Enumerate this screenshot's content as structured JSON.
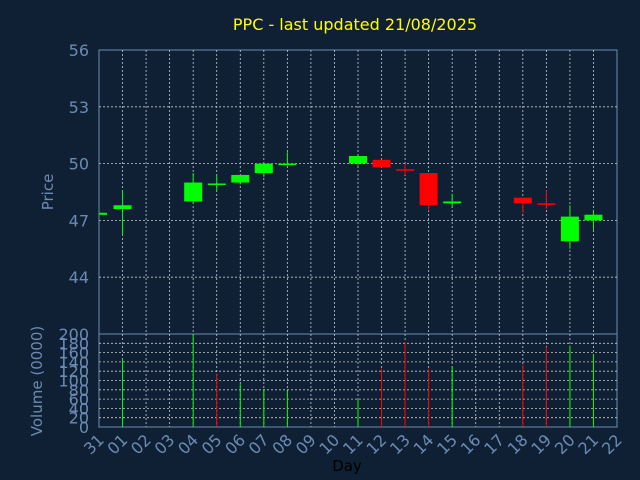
{
  "chart_data": [
    {
      "type": "candlestick",
      "title": "PPC - last updated 21/08/2025",
      "ylabel": "Price",
      "ylim": [
        41,
        56
      ],
      "yticks": [
        44,
        47,
        50,
        53,
        56
      ],
      "grid": true,
      "categories": [
        "31",
        "01",
        "02",
        "03",
        "04",
        "05",
        "06",
        "07",
        "08",
        "09",
        "10",
        "11",
        "12",
        "13",
        "14",
        "15",
        "16",
        "17",
        "18",
        "19",
        "20",
        "21",
        "22"
      ],
      "candles": [
        {
          "x": "31",
          "open": 47.35,
          "close": 47.35,
          "high": 47.35,
          "low": 47.35
        },
        {
          "x": "01",
          "open": 47.6,
          "close": 47.8,
          "high": 48.6,
          "low": 46.2
        },
        {
          "x": "04",
          "open": 48.0,
          "close": 49.0,
          "high": 49.5,
          "low": 47.9
        },
        {
          "x": "05",
          "open": 48.95,
          "close": 48.95,
          "high": 49.4,
          "low": 48.6
        },
        {
          "x": "06",
          "open": 49.0,
          "close": 49.4,
          "high": 49.4,
          "low": 48.9
        },
        {
          "x": "07",
          "open": 49.5,
          "close": 50.0,
          "high": 50.0,
          "low": 49.3
        },
        {
          "x": "08",
          "open": 49.95,
          "close": 50.0,
          "high": 50.6,
          "low": 49.9
        },
        {
          "x": "11",
          "open": 50.0,
          "close": 50.4,
          "high": 50.4,
          "low": 49.9
        },
        {
          "x": "12",
          "open": 50.2,
          "close": 49.8,
          "high": 50.2,
          "low": 49.8
        },
        {
          "x": "13",
          "open": 49.7,
          "close": 49.65,
          "high": 50.0,
          "low": 49.4
        },
        {
          "x": "14",
          "open": 49.5,
          "close": 47.8,
          "high": 49.5,
          "low": 47.5
        },
        {
          "x": "15",
          "open": 47.9,
          "close": 48.0,
          "high": 48.4,
          "low": 47.7
        },
        {
          "x": "18",
          "open": 48.2,
          "close": 47.9,
          "high": 48.2,
          "low": 47.4
        },
        {
          "x": "19",
          "open": 47.9,
          "close": 47.85,
          "high": 48.6,
          "low": 47.6
        },
        {
          "x": "20",
          "open": 45.9,
          "close": 47.2,
          "high": 47.8,
          "low": 45.5
        },
        {
          "x": "21",
          "open": 47.0,
          "close": 47.3,
          "high": 47.5,
          "low": 46.5
        }
      ],
      "colors": {
        "up": "#00ff00",
        "down": "#ff0000",
        "title": "#ffff00",
        "text": "#6a8bb5",
        "grid": "#c8c8c8",
        "axis": "#6a8bb5"
      }
    },
    {
      "type": "bar",
      "ylabel": "Volume (0000)",
      "xlabel": "Day",
      "ylim": [
        0,
        200
      ],
      "yticks": [
        0,
        20,
        40,
        60,
        80,
        100,
        120,
        140,
        160,
        180,
        200
      ],
      "grid": true,
      "categories": [
        "31",
        "01",
        "02",
        "03",
        "04",
        "05",
        "06",
        "07",
        "08",
        "09",
        "10",
        "11",
        "12",
        "13",
        "14",
        "15",
        "16",
        "17",
        "18",
        "19",
        "20",
        "21",
        "22"
      ],
      "bars": [
        {
          "x": "01",
          "value": 145,
          "direction": "up"
        },
        {
          "x": "04",
          "value": 200,
          "direction": "up"
        },
        {
          "x": "05",
          "value": 115,
          "direction": "down"
        },
        {
          "x": "06",
          "value": 92,
          "direction": "up"
        },
        {
          "x": "07",
          "value": 82,
          "direction": "up"
        },
        {
          "x": "08",
          "value": 78,
          "direction": "up"
        },
        {
          "x": "11",
          "value": 58,
          "direction": "up"
        },
        {
          "x": "12",
          "value": 125,
          "direction": "down"
        },
        {
          "x": "13",
          "value": 183,
          "direction": "down"
        },
        {
          "x": "14",
          "value": 125,
          "direction": "down"
        },
        {
          "x": "15",
          "value": 130,
          "direction": "up"
        },
        {
          "x": "18",
          "value": 133,
          "direction": "down"
        },
        {
          "x": "19",
          "value": 172,
          "direction": "down"
        },
        {
          "x": "20",
          "value": 175,
          "direction": "up"
        },
        {
          "x": "21",
          "value": 157,
          "direction": "up"
        }
      ]
    }
  ]
}
